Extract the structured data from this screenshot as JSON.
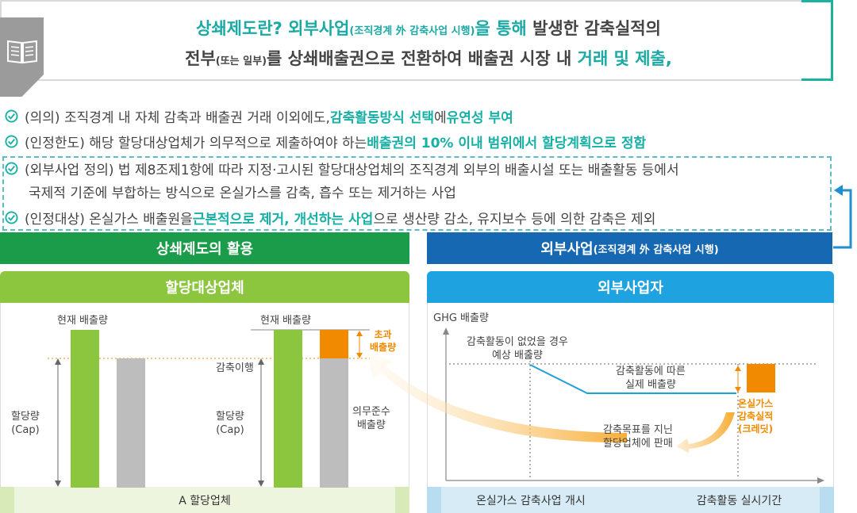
{
  "banner": {
    "line1_a": "상쇄제도란? 외부사업",
    "line1_small": "(조직경계 外 감축사업 시행)",
    "line1_b": "을 통해",
    "line1_c": " 발생한 감축실적의",
    "line2_a": "전부",
    "line2_small": "(또는 일부)",
    "line2_b": "를 상쇄배출권으로 전환하여 배출권 시장 내 ",
    "line2_c": "거래 및 제출,",
    "icon": "book-icon"
  },
  "checks": [
    {
      "a": "(의의) 조직경계 내 자체 감축과 배출권 거래 이외에도, ",
      "b": "감축활동방식 선택",
      "c": "에 ",
      "d": "유연성 부여",
      "e": ""
    },
    {
      "a": "(인정한도) 해당 할당대상업체가 의무적으로 제출하여야 하는 ",
      "b": "배출권의 10% 이내 범위에서 할당계획으로 정함",
      "c": "",
      "d": "",
      "e": ""
    },
    {
      "a": "(외부사업 정의) 법 제8조제1항에 따라 지정·고시된 할당대상업체의 조직경계 외부의 배출시설 또는 배출활동 등에서",
      "b": "",
      "c": "",
      "d": "",
      "e": ""
    },
    {
      "a": "(인정대상) 온실가스 배출원을 ",
      "b": "근본적으로 제거, 개선하는 사업",
      "c": "으로 생산량 감소, 유지보수 등에 의한 감축은 제외",
      "d": "",
      "e": ""
    }
  ],
  "check3_cont": "국제적 기준에 부합하는 방식으로 온실가스를 감축, 흡수 또는 제거하는 사업",
  "sections": {
    "left": "상쇄제도의 활용",
    "right_a": "외부사업",
    "right_small": "(조직경계 外 감축사업 시행)"
  },
  "panels": {
    "left_title": "할당대상업체",
    "right_title": "외부사업자",
    "left_footer": "A 할당업체",
    "right_footer_a": "온실가스 감축사업 개시",
    "right_footer_b": "감축활동 실시기간"
  },
  "left_diagram": {
    "current_emission_1": "현재 배출량",
    "current_emission_2": "현재 배출량",
    "cap_1": "할당량\n(Cap)",
    "cap_2": "할당량\n(Cap)",
    "reduction_fulfil": "감축이행",
    "excess": "초과\n배출량",
    "compliance": "의무준수\n배출량"
  },
  "right_diagram": {
    "ylabel": "GHG 배출량",
    "expected": "감축활동이 없었을 경우\n예상 배출량",
    "actual": "감축활동에 따른\n실제 배출량",
    "credit": "온실가스\n감축실적\n(크레딧)",
    "sell": "감축목표를 지닌\n할당업체에 판매"
  },
  "colors": {
    "teal": "#17b0a6",
    "green_dark": "#1b9c4a",
    "green_light": "#8cc63f",
    "blue_dark": "#1768b3",
    "blue_light": "#1fa3e0",
    "orange": "#f28a00",
    "gray_bar": "#bdbdbd"
  }
}
